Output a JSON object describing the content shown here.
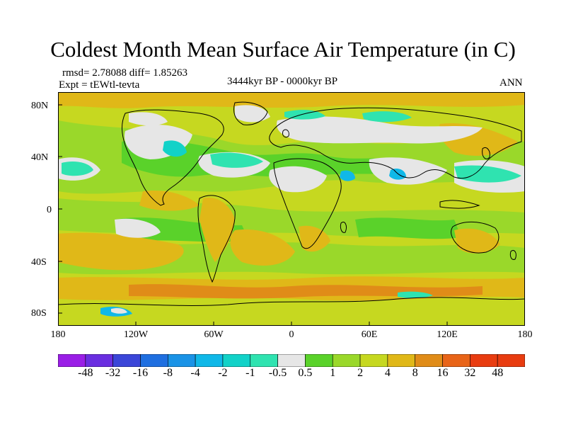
{
  "title": "Coldest Month Mean Surface Air Temperature (in C)",
  "stats": {
    "line1": "rmsd= 2.78088 diff= 1.85263",
    "line2": "Expt = tEWtl-tevta"
  },
  "period": "3444kyr BP - 0000kyr BP",
  "season": "ANN",
  "lat_ticks": [
    "80N",
    "40N",
    "0",
    "40S",
    "80S"
  ],
  "lon_ticks": [
    "180",
    "120W",
    "60W",
    "0",
    "60E",
    "120E",
    "180"
  ],
  "colorbar": {
    "labels": [
      "-48",
      "-32",
      "-16",
      "-8",
      "-4",
      "-2",
      "-1",
      "-0.5",
      "0.5",
      "1",
      "2",
      "4",
      "8",
      "16",
      "32",
      "48"
    ],
    "colors": [
      "#9a1ee6",
      "#6a2ee0",
      "#3b46d8",
      "#1f6fe0",
      "#1a93e6",
      "#10b8e8",
      "#12d2c8",
      "#2fe3b0",
      "#e6e6e6",
      "#5ad22a",
      "#9ad82a",
      "#c6d820",
      "#e0b818",
      "#e08c18",
      "#e86418",
      "#e83c10"
    ]
  },
  "legend_colors": {
    "near_zero": "#e6e6e6",
    "warm_small": "#5ad22a",
    "warm_mid": "#9ad82a",
    "warm_large": "#c6d820",
    "warmer": "#e0b818",
    "hot": "#e08c18",
    "cool_small": "#2fe3b0",
    "cool_mid": "#12d2c8",
    "cool_large": "#10b8e8"
  }
}
